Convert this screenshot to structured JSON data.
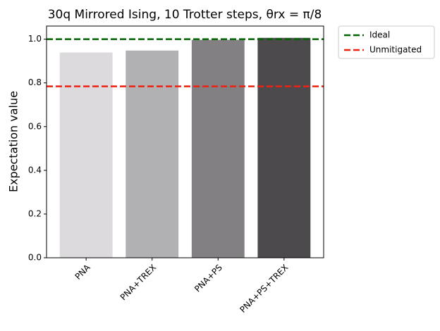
{
  "chart_data": {
    "type": "bar",
    "title": "30q Mirrored Ising, 10 Trotter steps, θrx = π/8",
    "y_label": "Expectation value",
    "categories": [
      "PNA",
      "PNA+TREX",
      "PNA+PS",
      "PNA+PS+TREX"
    ],
    "values": [
      0.939,
      0.948,
      0.997,
      1.006
    ],
    "colors": [
      "#dcdadc",
      "#b1b0b3",
      "#828083",
      "#4d4a4d"
    ],
    "reference_lines": [
      {
        "name": "Ideal",
        "value": 1.0,
        "color": "#006400"
      },
      {
        "name": "Unmitigated",
        "value": 0.784,
        "color": "#ee2211"
      }
    ],
    "ylim": [
      0,
      1.06
    ],
    "yticks": [
      {
        "value": 0,
        "label": "0.0"
      },
      0.2,
      0.4,
      0.6,
      0.8,
      {
        "value": 1,
        "label": "1.0"
      }
    ],
    "legend": "outside-upper-right"
  }
}
